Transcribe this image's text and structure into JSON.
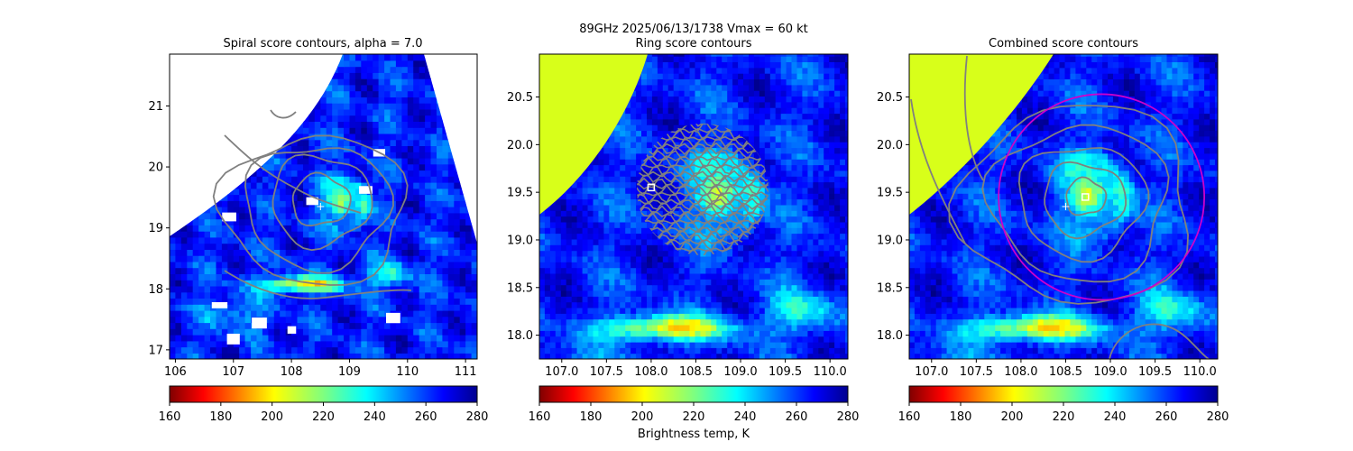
{
  "figure": {
    "suptitle_line1": "89GHz  2025/06/13/1738    Vmax = 60 kt",
    "colorbar_label": "Brightness temp, K"
  },
  "colors": {
    "contour": "#808080",
    "land": "#d8ff1a",
    "circle": "#cc00cc",
    "marker": "#ffffff"
  },
  "chart_data": [
    {
      "type": "heatmap",
      "title": "Spiral score contours, alpha =  7.0",
      "xlim": [
        105.9,
        111.2
      ],
      "ylim": [
        16.85,
        21.85
      ],
      "xticks": [
        "106",
        "107",
        "108",
        "109",
        "110",
        "111"
      ],
      "xtick_values": [
        106,
        107,
        108,
        109,
        110,
        111
      ],
      "yticks": [
        "17",
        "18",
        "19",
        "20",
        "21"
      ],
      "ytick_values": [
        17,
        18,
        19,
        20,
        21
      ],
      "center": [
        108.5,
        19.35
      ],
      "warm_core": [
        108.85,
        19.4
      ],
      "colorbar": {
        "min": 160,
        "max": 280,
        "ticks": [
          "160",
          "180",
          "200",
          "220",
          "240",
          "260",
          "280"
        ],
        "cmap": "jet_r"
      }
    },
    {
      "type": "heatmap",
      "title": "Ring score contours",
      "xlim": [
        106.75,
        110.2
      ],
      "ylim": [
        17.75,
        20.95
      ],
      "xticks": [
        "107.0",
        "107.5",
        "108.0",
        "108.5",
        "109.0",
        "109.5",
        "110.0"
      ],
      "xtick_values": [
        107.0,
        107.5,
        108.0,
        108.5,
        109.0,
        109.5,
        110.0
      ],
      "yticks": [
        "18.0",
        "18.5",
        "19.0",
        "19.5",
        "20.0",
        "20.5"
      ],
      "ytick_values": [
        18.0,
        18.5,
        19.0,
        19.5,
        20.0,
        20.5
      ],
      "ring_center": [
        108.0,
        19.55
      ],
      "ring_region_center": [
        108.55,
        19.55
      ],
      "ring_region_radius": 0.68,
      "colorbar": {
        "min": 160,
        "max": 280,
        "ticks": [
          "160",
          "180",
          "200",
          "220",
          "240",
          "260",
          "280"
        ],
        "cmap": "jet_r"
      }
    },
    {
      "type": "heatmap",
      "title": "Combined score contours",
      "xlim": [
        106.75,
        110.2
      ],
      "ylim": [
        17.75,
        20.95
      ],
      "xticks": [
        "107.0",
        "107.5",
        "108.0",
        "108.5",
        "109.0",
        "109.5",
        "110.0"
      ],
      "xtick_values": [
        107.0,
        107.5,
        108.0,
        108.5,
        109.0,
        109.5,
        110.0
      ],
      "yticks": [
        "18.0",
        "18.5",
        "19.0",
        "19.5",
        "20.0",
        "20.5"
      ],
      "ytick_values": [
        18.0,
        18.5,
        19.0,
        19.5,
        20.0,
        20.5
      ],
      "center": [
        108.72,
        19.45
      ],
      "first_guess": [
        108.5,
        19.35
      ],
      "circle_center": [
        108.9,
        19.45
      ],
      "circle_radius": 1.15,
      "colorbar": {
        "min": 160,
        "max": 280,
        "ticks": [
          "160",
          "180",
          "200",
          "220",
          "240",
          "260",
          "280"
        ],
        "cmap": "jet_r"
      }
    }
  ]
}
